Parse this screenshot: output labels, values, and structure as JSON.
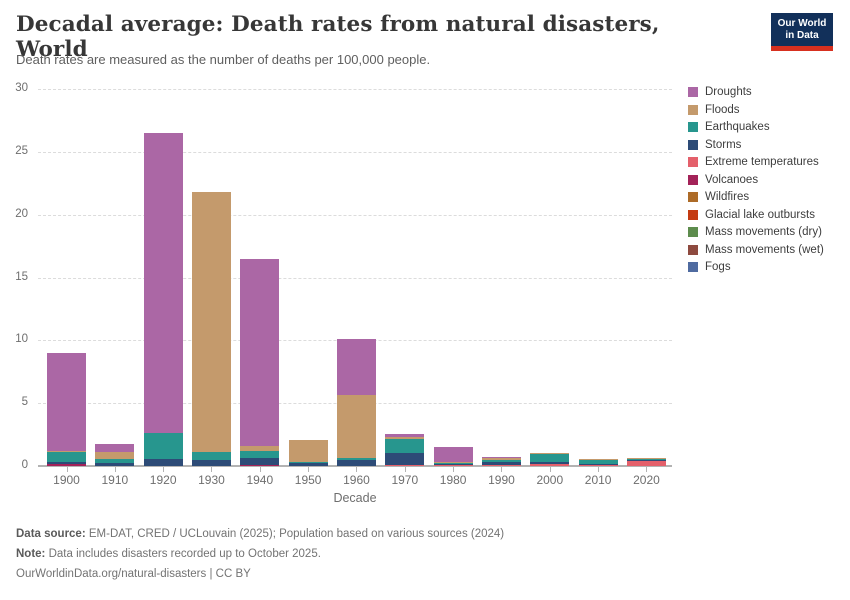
{
  "header": {
    "title": "Decadal average: Death rates from natural disasters, World",
    "subtitle": "Death rates are measured as the number of deaths per 100,000 people.",
    "logo": {
      "line1": "Our World",
      "line2": "in Data",
      "bg_color": "#12305a",
      "accent_color": "#d7301f"
    }
  },
  "chart_data": {
    "type": "bar",
    "stacked": true,
    "title": "Decadal average: Death rates from natural disasters, World",
    "xlabel": "Decade",
    "ylabel": "",
    "ylim": [
      0,
      30
    ],
    "yticks": [
      0,
      5,
      10,
      15,
      20,
      25,
      30
    ],
    "grid": "horizontal dashed",
    "legend_position": "right",
    "stack_note": "series listed top-of-stack first; bars stack in reverse list order",
    "categories": [
      "1900",
      "1910",
      "1920",
      "1930",
      "1940",
      "1950",
      "1960",
      "1970",
      "1980",
      "1990",
      "2000",
      "2010",
      "2020"
    ],
    "series": [
      {
        "name": "Droughts",
        "color": "#ab67a5",
        "values": [
          7.8,
          0.65,
          23.9,
          0,
          14.9,
          0,
          4.45,
          0.25,
          1.2,
          0.05,
          0,
          0,
          0
        ]
      },
      {
        "name": "Floods",
        "color": "#c49a6c",
        "values": [
          0.1,
          0.55,
          0,
          20.7,
          0.4,
          1.7,
          5.05,
          0.15,
          0.08,
          0.2,
          0.1,
          0.08,
          0.08
        ]
      },
      {
        "name": "Earthquakes",
        "color": "#27968e",
        "values": [
          0.8,
          0.35,
          2.05,
          0.65,
          0.55,
          0.15,
          0.15,
          1.1,
          0.1,
          0.1,
          0.6,
          0.28,
          0.08
        ]
      },
      {
        "name": "Storms",
        "color": "#2d4b77",
        "values": [
          0.15,
          0.2,
          0.55,
          0.45,
          0.55,
          0.2,
          0.45,
          1.0,
          0.12,
          0.3,
          0.2,
          0.06,
          0.05
        ]
      },
      {
        "name": "Extreme temperatures",
        "color": "#e4606b",
        "values": [
          0,
          0,
          0,
          0,
          0,
          0,
          0,
          0.05,
          0.05,
          0.05,
          0.12,
          0.12,
          0.4
        ]
      },
      {
        "name": "Volcanoes",
        "color": "#a32258",
        "values": [
          0.15,
          0,
          0,
          0,
          0.1,
          0,
          0,
          0,
          0,
          0,
          0,
          0,
          0
        ]
      },
      {
        "name": "Wildfires",
        "color": "#ad6b27",
        "values": [
          0,
          0,
          0,
          0,
          0,
          0,
          0,
          0,
          0,
          0,
          0,
          0,
          0
        ]
      },
      {
        "name": "Glacial lake outbursts",
        "color": "#c43b12",
        "values": [
          0,
          0,
          0,
          0,
          0,
          0,
          0,
          0,
          0,
          0,
          0,
          0,
          0
        ]
      },
      {
        "name": "Mass movements (dry)",
        "color": "#5d8c4d",
        "values": [
          0,
          0,
          0,
          0,
          0,
          0,
          0,
          0,
          0,
          0,
          0,
          0,
          0
        ]
      },
      {
        "name": "Mass movements (wet)",
        "color": "#8e4a3f",
        "values": [
          0,
          0,
          0,
          0,
          0,
          0,
          0,
          0,
          0,
          0,
          0,
          0,
          0
        ]
      },
      {
        "name": "Fogs",
        "color": "#4f6ba0",
        "values": [
          0,
          0,
          0,
          0,
          0,
          0,
          0,
          0,
          0,
          0,
          0,
          0,
          0
        ]
      }
    ]
  },
  "footer": {
    "data_source_label": "Data source:",
    "data_source_text": " EM-DAT, CRED / UCLouvain (2025); Population based on various sources (2024)",
    "note_label": "Note:",
    "note_text": " Data includes disasters recorded up to October 2025.",
    "url_line": "OurWorldinData.org/natural-disasters | CC BY"
  }
}
